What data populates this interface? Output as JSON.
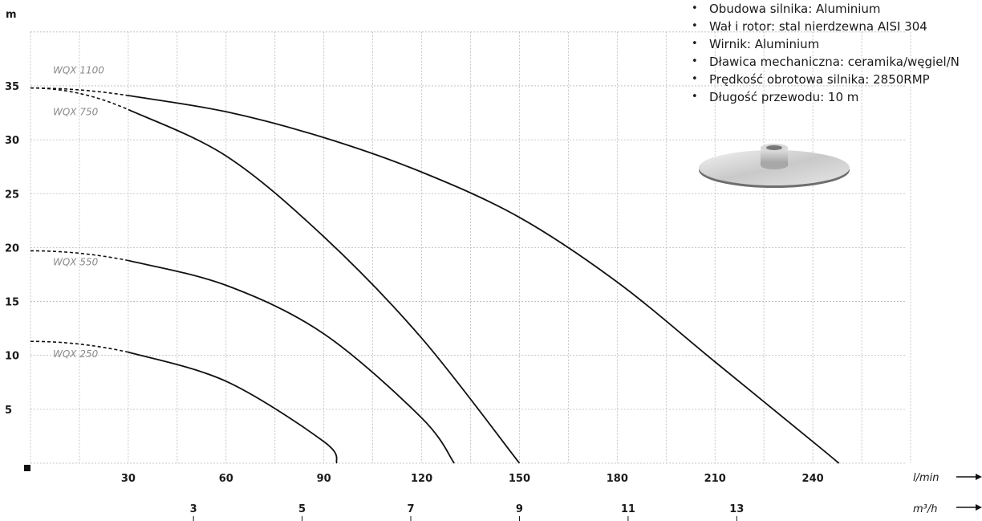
{
  "chart_data": {
    "type": "line",
    "ylabel": "m",
    "x_unit_label": "l/min",
    "x2_unit_label": "m³/h",
    "ylim": [
      0,
      40
    ],
    "xlim": [
      0,
      270
    ],
    "y_ticks": [
      5,
      10,
      15,
      20,
      25,
      30,
      35
    ],
    "x_ticks": [
      30,
      60,
      90,
      120,
      150,
      180,
      210,
      240
    ],
    "x2_ticks": [
      3,
      5,
      7,
      9,
      11,
      13
    ],
    "grid": true,
    "series": [
      {
        "name": "WQX 1100",
        "x": [
          0,
          30,
          60,
          90,
          120,
          150,
          180,
          210,
          240,
          248
        ],
        "y": [
          34.8,
          34.1,
          32.6,
          30.2,
          27.0,
          22.8,
          16.8,
          9.4,
          2.0,
          0
        ]
      },
      {
        "name": "WQX 750",
        "x": [
          0,
          30,
          60,
          90,
          120,
          150
        ],
        "y": [
          34.8,
          32.8,
          28.5,
          21.0,
          11.6,
          0
        ]
      },
      {
        "name": "WQX 550",
        "x": [
          0,
          30,
          60,
          90,
          120,
          130
        ],
        "y": [
          19.7,
          18.8,
          16.5,
          12.0,
          4.2,
          0
        ]
      },
      {
        "name": "WQX 250",
        "x": [
          0,
          30,
          60,
          90,
          94
        ],
        "y": [
          11.3,
          10.3,
          7.6,
          2.0,
          0
        ]
      }
    ]
  },
  "specs": [
    "Obudowa silnika: Aluminium",
    "Wał i rotor: stal nierdzewna AISI 304",
    "Wirnik: Aluminium",
    "Dławica mechaniczna: ceramika/węgiel/N",
    "Prędkość obrotowa silnika: 2850RMP",
    "Długość przewodu: 10 m"
  ],
  "colors": {
    "curve": "#111111",
    "grid": "#b8b8b8",
    "label": "#8a8a8a"
  }
}
